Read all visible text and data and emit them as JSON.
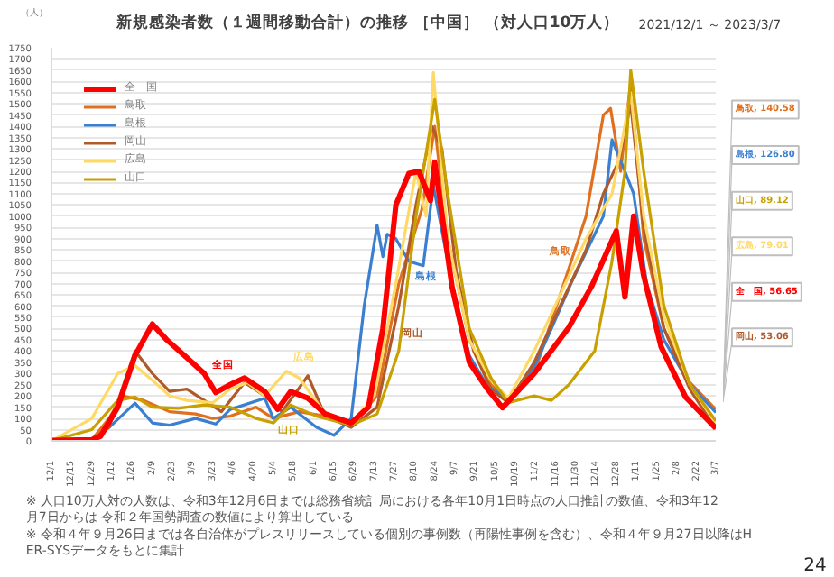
{
  "chart_data": {
    "type": "line",
    "title": "新規感染者数（１週間移動合計）の推移 ［中国］ （対人口10万人）",
    "subtitle": "2021/12/1 ～ 2023/3/7",
    "ylabel": "（人）",
    "xlim": [
      "2021-12-01",
      "2023-03-07"
    ],
    "xticks": [
      {
        "value": "2021-12-01",
        "label": "12/1"
      },
      {
        "value": "2021-12-15",
        "label": "12/15"
      },
      {
        "value": "2021-12-29",
        "label": "12/29"
      },
      {
        "value": "2022-01-12",
        "label": "1/12"
      },
      {
        "value": "2022-01-26",
        "label": "1/26"
      },
      {
        "value": "2022-02-09",
        "label": "2/9"
      },
      {
        "value": "2022-02-23",
        "label": "2/23"
      },
      {
        "value": "2022-03-09",
        "label": "3/9"
      },
      {
        "value": "2022-03-23",
        "label": "3/23"
      },
      {
        "value": "2022-04-06",
        "label": "4/6"
      },
      {
        "value": "2022-04-20",
        "label": "4/20"
      },
      {
        "value": "2022-05-04",
        "label": "5/4"
      },
      {
        "value": "2022-05-18",
        "label": "5/18"
      },
      {
        "value": "2022-06-01",
        "label": "6/1"
      },
      {
        "value": "2022-06-15",
        "label": "6/15"
      },
      {
        "value": "2022-06-29",
        "label": "6/29"
      },
      {
        "value": "2022-07-13",
        "label": "7/13"
      },
      {
        "value": "2022-07-27",
        "label": "7/27"
      },
      {
        "value": "2022-08-10",
        "label": "8/10"
      },
      {
        "value": "2022-08-24",
        "label": "8/24"
      },
      {
        "value": "2022-09-07",
        "label": "9/7"
      },
      {
        "value": "2022-09-21",
        "label": "9/21"
      },
      {
        "value": "2022-10-05",
        "label": "10/5"
      },
      {
        "value": "2022-10-19",
        "label": "10/19"
      },
      {
        "value": "2022-11-02",
        "label": "11/2"
      },
      {
        "value": "2022-11-16",
        "label": "11/16"
      },
      {
        "value": "2022-11-30",
        "label": "11/30"
      },
      {
        "value": "2022-12-14",
        "label": "12/14"
      },
      {
        "value": "2022-12-28",
        "label": "12/28"
      },
      {
        "value": "2023-01-11",
        "label": "1/11"
      },
      {
        "value": "2023-01-25",
        "label": "1/25"
      },
      {
        "value": "2023-02-08",
        "label": "2/8"
      },
      {
        "value": "2023-02-22",
        "label": "2/22"
      },
      {
        "value": "2023-03-07",
        "label": "3/7"
      }
    ],
    "ylim": [
      0,
      1750
    ],
    "yticks": [
      0,
      50,
      100,
      150,
      200,
      250,
      300,
      350,
      400,
      450,
      500,
      550,
      600,
      650,
      700,
      750,
      800,
      850,
      900,
      950,
      1000,
      1050,
      1100,
      1150,
      1200,
      1250,
      1300,
      1350,
      1400,
      1450,
      1500,
      1550,
      1600,
      1650,
      1700,
      1750
    ],
    "grid": "y",
    "legend": "top left",
    "marker": "none",
    "series": [
      {
        "name": "全　国",
        "color": "#ff0000",
        "x": [
          "2021-12-01",
          "2021-12-29",
          "2022-01-04",
          "2022-01-16",
          "2022-01-28",
          "2022-02-09",
          "2022-02-19",
          "2022-03-05",
          "2022-03-17",
          "2022-03-25",
          "2022-04-04",
          "2022-04-14",
          "2022-04-28",
          "2022-05-07",
          "2022-05-16",
          "2022-05-28",
          "2022-06-09",
          "2022-06-27",
          "2022-07-09",
          "2022-07-19",
          "2022-07-28",
          "2022-08-06",
          "2022-08-13",
          "2022-08-21",
          "2022-08-24",
          "2022-09-05",
          "2022-09-17",
          "2022-09-29",
          "2022-10-10",
          "2022-11-01",
          "2022-11-25",
          "2022-12-11",
          "2022-12-28",
          "2023-01-03",
          "2023-01-09",
          "2023-01-16",
          "2023-01-28",
          "2023-02-14",
          "2023-03-07"
        ],
        "values": [
          2,
          5,
          20,
          150,
          380,
          520,
          450,
          370,
          300,
          215,
          250,
          280,
          220,
          140,
          220,
          190,
          120,
          80,
          150,
          500,
          1050,
          1190,
          1200,
          1070,
          1240,
          686,
          350,
          235,
          148,
          300,
          505,
          690,
          935,
          640,
          1000,
          735,
          420,
          195,
          56.65
        ]
      },
      {
        "name": "鳥取",
        "color": "#e07020",
        "x": [
          "2021-12-01",
          "2021-12-29",
          "2022-01-10",
          "2022-01-19",
          "2022-02-03",
          "2022-02-21",
          "2022-03-11",
          "2022-03-23",
          "2022-04-04",
          "2022-04-22",
          "2022-05-04",
          "2022-05-22",
          "2022-06-09",
          "2022-06-27",
          "2022-07-15",
          "2022-07-30",
          "2022-08-15",
          "2022-08-24",
          "2022-09-02",
          "2022-09-17",
          "2022-10-02",
          "2022-10-14",
          "2022-11-01",
          "2022-11-19",
          "2022-12-07",
          "2022-12-19",
          "2022-12-24",
          "2022-12-31",
          "2023-01-07",
          "2023-01-16",
          "2023-01-30",
          "2023-02-17",
          "2023-03-07"
        ],
        "values": [
          0,
          5,
          100,
          200,
          180,
          130,
          120,
          100,
          110,
          150,
          100,
          130,
          110,
          70,
          200,
          700,
          1030,
          1400,
          900,
          450,
          250,
          180,
          300,
          650,
          1000,
          1450,
          1480,
          1200,
          1600,
          900,
          500,
          260,
          140.58
        ]
      },
      {
        "name": "島根",
        "color": "#3a7fd0",
        "x": [
          "2021-12-01",
          "2021-12-29",
          "2022-01-10",
          "2022-01-28",
          "2022-02-09",
          "2022-02-21",
          "2022-03-11",
          "2022-03-25",
          "2022-04-04",
          "2022-04-28",
          "2022-05-04",
          "2022-05-16",
          "2022-06-03",
          "2022-06-15",
          "2022-06-27",
          "2022-07-06",
          "2022-07-15",
          "2022-07-19",
          "2022-07-22",
          "2022-07-28",
          "2022-08-06",
          "2022-08-16",
          "2022-08-23",
          "2022-09-05",
          "2022-09-17",
          "2022-09-29",
          "2022-10-14",
          "2022-11-01",
          "2022-11-13",
          "2022-11-27",
          "2022-12-19",
          "2022-12-25",
          "2023-01-03",
          "2023-01-09",
          "2023-01-18",
          "2023-01-30",
          "2023-02-17",
          "2023-03-07"
        ],
        "values": [
          0,
          5,
          60,
          168,
          80,
          70,
          100,
          75,
          140,
          190,
          100,
          150,
          60,
          25,
          100,
          600,
          960,
          820,
          920,
          900,
          800,
          780,
          1137,
          700,
          380,
          250,
          180,
          330,
          500,
          707,
          1000,
          1340,
          1200,
          1100,
          700,
          450,
          250,
          126.8
        ]
      },
      {
        "name": "岡山",
        "color": "#b05a2a",
        "x": [
          "2021-12-01",
          "2021-12-29",
          "2022-01-10",
          "2022-01-28",
          "2022-02-09",
          "2022-02-21",
          "2022-03-05",
          "2022-03-17",
          "2022-03-29",
          "2022-04-14",
          "2022-04-28",
          "2022-05-10",
          "2022-05-28",
          "2022-06-09",
          "2022-06-27",
          "2022-07-15",
          "2022-07-30",
          "2022-08-11",
          "2022-08-22",
          "2022-08-29",
          "2022-09-08",
          "2022-09-20",
          "2022-10-02",
          "2022-10-14",
          "2022-11-01",
          "2022-11-19",
          "2022-12-07",
          "2022-12-19",
          "2022-12-30",
          "2023-01-07",
          "2023-01-16",
          "2023-01-30",
          "2023-02-17",
          "2023-03-07"
        ],
        "values": [
          0,
          5,
          60,
          400,
          300,
          220,
          230,
          180,
          130,
          260,
          200,
          130,
          290,
          110,
          60,
          150,
          600,
          1050,
          1400,
          1300,
          750,
          400,
          230,
          170,
          350,
          600,
          850,
          1100,
          1250,
          1500,
          950,
          500,
          230,
          53.06
        ]
      },
      {
        "name": "広島",
        "color": "#ffd966",
        "x": [
          "2021-12-01",
          "2021-12-29",
          "2022-01-16",
          "2022-01-28",
          "2022-02-09",
          "2022-02-21",
          "2022-03-05",
          "2022-03-23",
          "2022-04-04",
          "2022-04-16",
          "2022-04-28",
          "2022-05-13",
          "2022-05-22",
          "2022-06-09",
          "2022-06-27",
          "2022-07-13",
          "2022-07-28",
          "2022-08-11",
          "2022-08-18",
          "2022-08-23",
          "2022-09-02",
          "2022-09-17",
          "2022-10-02",
          "2022-10-14",
          "2022-11-01",
          "2022-11-19",
          "2022-12-07",
          "2022-12-25",
          "2022-12-31",
          "2023-01-07",
          "2023-01-16",
          "2023-01-30",
          "2023-02-17",
          "2023-03-07"
        ],
        "values": [
          0,
          100,
          300,
          335,
          270,
          200,
          180,
          170,
          230,
          260,
          200,
          310,
          280,
          120,
          80,
          200,
          700,
          1200,
          1000,
          1640,
          900,
          450,
          270,
          190,
          400,
          650,
          900,
          1100,
          1300,
          1550,
          1000,
          550,
          250,
          79
        ]
      },
      {
        "name": "山口",
        "color": "#c8a000",
        "x": [
          "2021-12-01",
          "2021-12-29",
          "2022-01-16",
          "2022-01-28",
          "2022-02-09",
          "2022-02-27",
          "2022-03-17",
          "2022-04-04",
          "2022-04-22",
          "2022-05-04",
          "2022-05-16",
          "2022-06-03",
          "2022-06-27",
          "2022-07-15",
          "2022-07-30",
          "2022-08-11",
          "2022-08-21",
          "2022-08-24",
          "2022-09-02",
          "2022-09-17",
          "2022-10-02",
          "2022-10-14",
          "2022-11-01",
          "2022-11-13",
          "2022-11-25",
          "2022-12-13",
          "2022-12-25",
          "2023-01-03",
          "2023-01-07",
          "2023-01-16",
          "2023-01-30",
          "2023-02-17",
          "2023-03-07"
        ],
        "values": [
          0,
          50,
          180,
          195,
          150,
          145,
          160,
          150,
          100,
          80,
          160,
          110,
          70,
          120,
          400,
          1000,
          1400,
          1520,
          1100,
          500,
          280,
          170,
          200,
          180,
          250,
          400,
          800,
          1200,
          1650,
          1200,
          600,
          250,
          89.12
        ]
      }
    ],
    "annotations": [
      "全国",
      "広島",
      "山口",
      "島根",
      "岡山",
      "鳥取",
      "鳥取, 140.58",
      "島根, 126.80",
      "山口, 89.12",
      "広島, 79.01",
      "全　国, 56.65",
      "岡山, 53.06",
      "※ 人口10万人対の人数は、令和3年12月6日までは総務省統計局における各年10月1日時点の人口推計の数値、令和3年12月7日からは 令和２年国勢調査の数値により算出している",
      "※ 令和４年９月26日までは各自治体がプレスリリースしている個別の事例数（再陽性事例を含む）、令和４年９月27日以降はHER-SYSデータをもとに集計",
      "24"
    ]
  }
}
